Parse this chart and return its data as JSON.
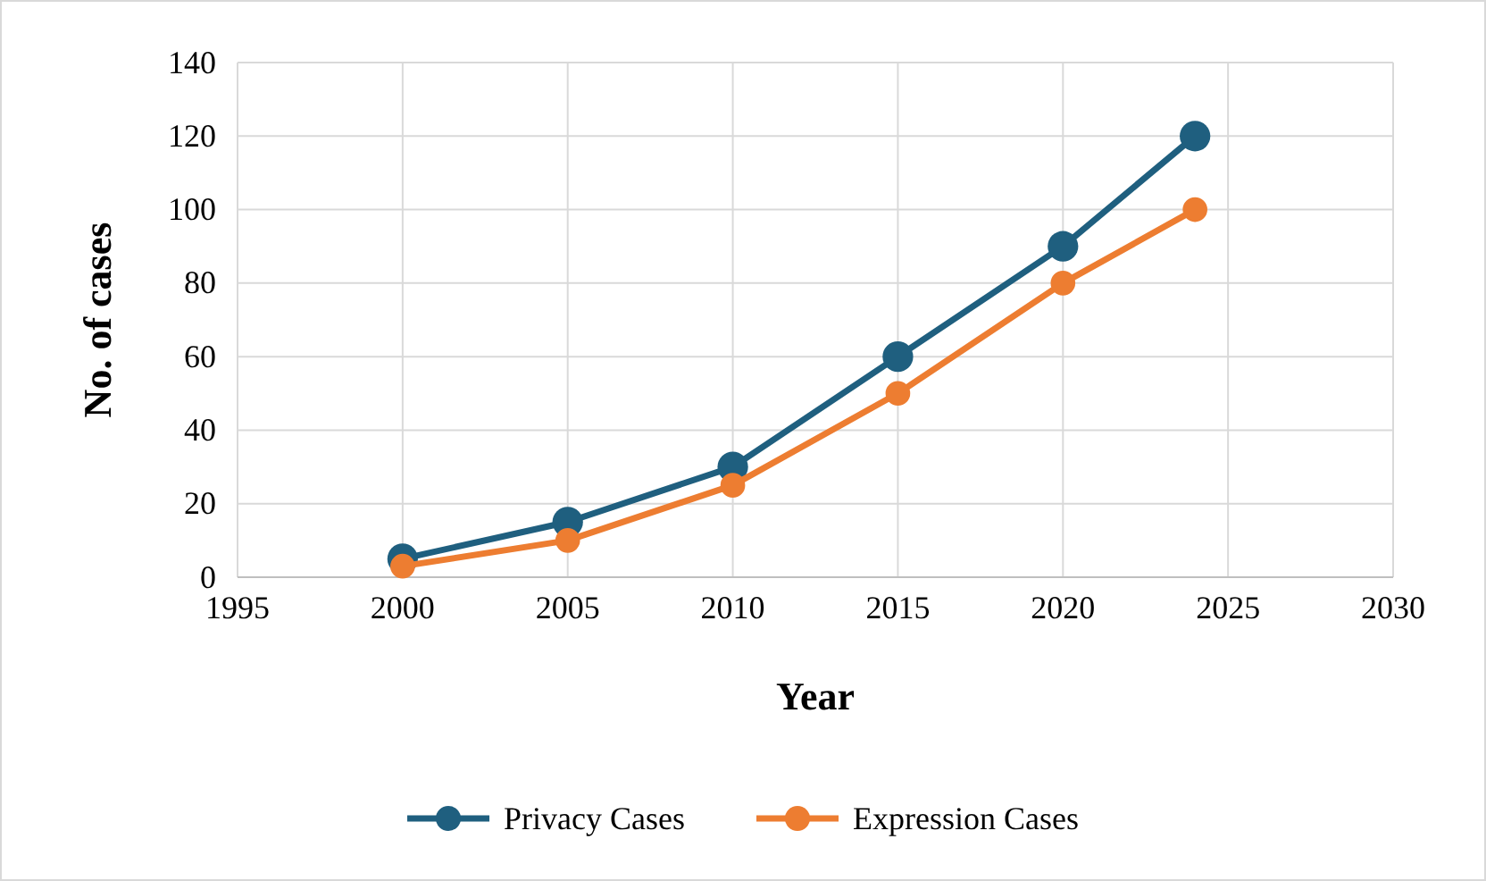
{
  "chart_data": {
    "type": "line",
    "xlabel": "Year",
    "ylabel": "No. of cases",
    "x": [
      2000,
      2005,
      2010,
      2015,
      2020,
      2024
    ],
    "series": [
      {
        "name": "Privacy Cases",
        "color": "#1f5f7f",
        "values": [
          5,
          15,
          30,
          60,
          90,
          120
        ]
      },
      {
        "name": "Expression Cases",
        "color": "#ed7d31",
        "values": [
          3,
          10,
          25,
          50,
          80,
          100
        ]
      }
    ],
    "xlim": [
      1995,
      2030
    ],
    "xticks": [
      1995,
      2000,
      2005,
      2010,
      2015,
      2020,
      2025,
      2030
    ],
    "ylim": [
      0,
      140
    ],
    "yticks": [
      0,
      20,
      40,
      60,
      80,
      100,
      120,
      140
    ],
    "grid": true,
    "legend": "bottom",
    "marker": "circle",
    "line_style": "solid"
  }
}
